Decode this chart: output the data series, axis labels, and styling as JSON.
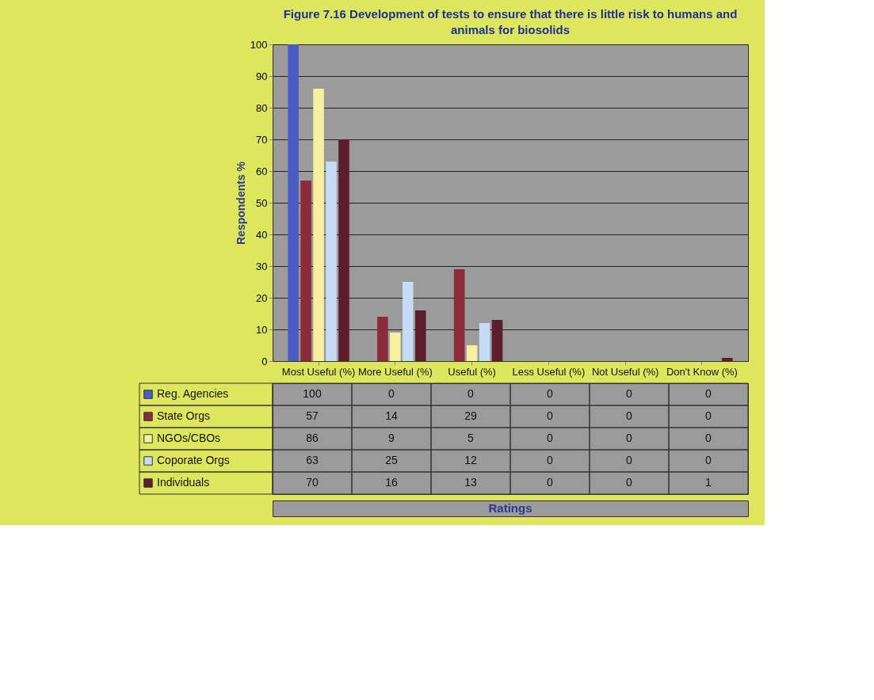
{
  "chart_data": {
    "type": "bar",
    "title": "Figure 7.16 Development of tests to ensure that there is little risk to humans and animals for biosolids",
    "annotations": [
      "Ratings"
    ],
    "ylabel": "Respondents %",
    "categories": [
      "Most Useful (%)",
      "More Useful (%)",
      "Useful (%)",
      "Less Useful (%)",
      "Not Useful (%)",
      "Don't Know (%)"
    ],
    "series": [
      {
        "name": "Reg. Agencies",
        "color": "#4a5cc4",
        "values": [
          100,
          0,
          0,
          0,
          0,
          0
        ]
      },
      {
        "name": "State Orgs",
        "color": "#8c2b3c",
        "values": [
          57,
          14,
          29,
          0,
          0,
          0
        ]
      },
      {
        "name": "NGOs/CBOs",
        "color": "#f4f0a0",
        "values": [
          86,
          9,
          5,
          0,
          0,
          0
        ]
      },
      {
        "name": "Coporate Orgs",
        "color": "#c6dcf4",
        "values": [
          63,
          25,
          12,
          0,
          0,
          0
        ]
      },
      {
        "name": "Individuals",
        "color": "#5c1e2c",
        "values": [
          70,
          16,
          13,
          0,
          0,
          1
        ]
      }
    ],
    "ylim": [
      0,
      100
    ],
    "yticks": [
      0,
      10,
      20,
      30,
      40,
      50,
      60,
      70,
      80,
      90,
      100
    ],
    "grid": "y",
    "legend": "bottom",
    "data_labels": true
  }
}
